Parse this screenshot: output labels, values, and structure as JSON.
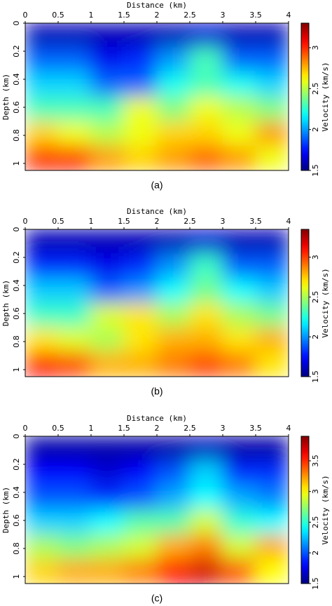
{
  "chart_data": [
    {
      "type": "heatmap",
      "xlabel": "Distance (km)",
      "ylabel": "Depth (km)",
      "colorbar_label": "Velocity (km/s)",
      "caption": "(a)",
      "colormap": "jet",
      "xlim": [
        0,
        4
      ],
      "ylim": [
        0,
        1.05
      ],
      "clim": [
        1.5,
        3.3
      ],
      "xticks": [
        0,
        0.5,
        1,
        1.5,
        2,
        2.5,
        3,
        3.5,
        4
      ],
      "yticks": [
        0,
        0.2,
        0.4,
        0.6,
        0.8,
        1
      ],
      "cticks": [
        1.5,
        2,
        2.5,
        3
      ],
      "x": [
        0.25,
        0.75,
        1.25,
        1.75,
        2.25,
        2.75,
        3.25,
        3.75
      ],
      "y": [
        0.0875,
        0.2625,
        0.4375,
        0.6125,
        0.7875,
        0.9625
      ],
      "values": [
        [
          1.6,
          1.6,
          1.6,
          1.6,
          1.6,
          1.65,
          1.6,
          1.6
        ],
        [
          1.9,
          1.9,
          1.7,
          1.8,
          2.0,
          2.3,
          1.9,
          1.9
        ],
        [
          2.1,
          2.1,
          1.9,
          1.9,
          2.2,
          2.3,
          2.2,
          2.1
        ],
        [
          2.3,
          2.3,
          2.3,
          2.6,
          2.4,
          2.6,
          2.5,
          2.4
        ],
        [
          2.7,
          2.6,
          2.5,
          2.6,
          2.7,
          2.7,
          2.6,
          2.8
        ],
        [
          3.0,
          3.0,
          2.8,
          2.7,
          2.8,
          2.9,
          2.8,
          2.6
        ]
      ]
    },
    {
      "type": "heatmap",
      "xlabel": "Distance (km)",
      "ylabel": "Depth (km)",
      "colorbar_label": "Velocity (km/s)",
      "caption": "(b)",
      "colormap": "jet",
      "xlim": [
        0,
        4
      ],
      "ylim": [
        0,
        1.05
      ],
      "clim": [
        1.5,
        3.35
      ],
      "xticks": [
        0,
        0.5,
        1,
        1.5,
        2,
        2.5,
        3,
        3.5,
        4
      ],
      "yticks": [
        0,
        0.2,
        0.4,
        0.6,
        0.8,
        1
      ],
      "cticks": [
        1.5,
        2,
        2.5,
        3
      ],
      "x": [
        0.25,
        0.75,
        1.25,
        1.75,
        2.25,
        2.75,
        3.25,
        3.75
      ],
      "y": [
        0.0875,
        0.2625,
        0.4375,
        0.6125,
        0.7875,
        0.9625
      ],
      "values": [
        [
          1.6,
          1.6,
          1.6,
          1.6,
          1.6,
          1.65,
          1.6,
          1.6
        ],
        [
          1.8,
          1.8,
          1.7,
          1.8,
          2.0,
          2.3,
          1.9,
          1.9
        ],
        [
          2.1,
          2.1,
          1.9,
          2.0,
          2.2,
          2.4,
          2.2,
          2.1
        ],
        [
          2.3,
          2.3,
          2.6,
          2.7,
          2.5,
          2.7,
          2.5,
          2.4
        ],
        [
          2.7,
          2.6,
          2.5,
          2.7,
          2.8,
          2.8,
          2.7,
          2.8
        ],
        [
          3.1,
          3.0,
          2.8,
          2.8,
          2.9,
          3.0,
          2.9,
          2.7
        ]
      ]
    },
    {
      "type": "heatmap",
      "xlabel": "Distance (km)",
      "ylabel": "Depth (km)",
      "colorbar_label": "Velocity (km/s)",
      "caption": "(c)",
      "colormap": "jet",
      "xlim": [
        0,
        4
      ],
      "ylim": [
        0,
        1.05
      ],
      "clim": [
        1.5,
        3.9
      ],
      "xticks": [
        0,
        0.5,
        1,
        1.5,
        2,
        2.5,
        3,
        3.5,
        4
      ],
      "yticks": [
        0,
        0.2,
        0.4,
        0.6,
        0.8,
        1
      ],
      "cticks": [
        1.5,
        2,
        2.5,
        3,
        3.5
      ],
      "x": [
        0.25,
        0.75,
        1.25,
        1.75,
        2.25,
        2.75,
        3.25,
        3.75
      ],
      "y": [
        0.0875,
        0.2625,
        0.4375,
        0.6125,
        0.7875,
        0.9625
      ],
      "values": [
        [
          1.6,
          1.6,
          1.6,
          1.6,
          1.6,
          1.65,
          1.6,
          1.6
        ],
        [
          1.8,
          1.8,
          1.7,
          1.8,
          2.0,
          2.3,
          1.9,
          1.9
        ],
        [
          2.0,
          2.0,
          1.9,
          2.0,
          2.2,
          2.4,
          2.2,
          2.1
        ],
        [
          2.3,
          2.3,
          2.4,
          2.6,
          2.6,
          2.9,
          2.5,
          2.4
        ],
        [
          2.8,
          2.7,
          2.8,
          2.9,
          3.2,
          3.3,
          2.9,
          3.2
        ],
        [
          3.1,
          3.2,
          3.2,
          3.3,
          3.6,
          3.7,
          3.4,
          3.0
        ]
      ]
    }
  ]
}
